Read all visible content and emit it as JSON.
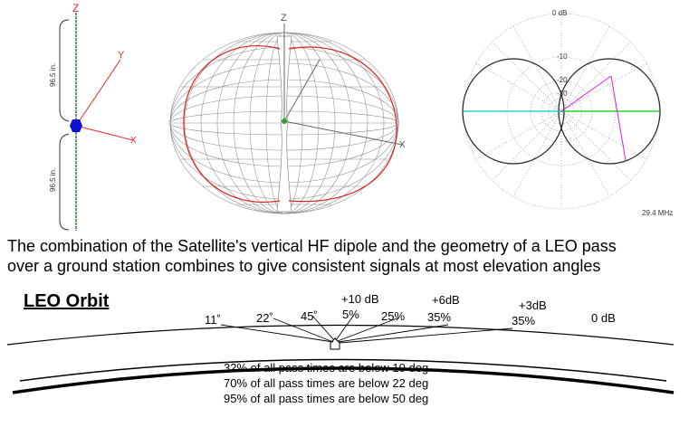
{
  "antenna": {
    "z_label": "Z",
    "y_label": "Y",
    "x_label": "X",
    "upper_length": "96.5 in.",
    "lower_length": "96.5 in."
  },
  "pattern3d": {
    "z_label": "Z",
    "x_label": "X"
  },
  "polar": {
    "ring_labels": [
      "0 dB",
      "-10",
      "-20",
      "-30"
    ],
    "frequency": "29.4 MHz"
  },
  "caption": {
    "line1": "The combination of the Satellite's vertical HF dipole and the geometry of a LEO pass",
    "line2": "over a ground station combines to give consistent signals at most elevation angles"
  },
  "orbit": {
    "title": "LEO Orbit",
    "angles": [
      "11˚",
      "22˚",
      "45˚"
    ],
    "zenith_gain": "+10 dB",
    "percents": [
      "5%",
      "25%",
      "35%",
      "35%"
    ],
    "gain_6": "+6dB",
    "gain_3": "+3dB",
    "gain_0": "0 dB",
    "stats": [
      "32% of all pass times are below 10 deg",
      "70% of all pass times are below 22 deg",
      "95% of all pass times are below 50 deg"
    ]
  },
  "colors": {
    "antenna_wire": "#2e7d32",
    "feed_point": "#1010d0",
    "axes": "#e03030",
    "pattern_cut": "#dd2222",
    "mesh": "#8a8a8a",
    "polar_h": "#00cc00",
    "polar_h2": "#00cccc",
    "polar_diag": "#dd22dd"
  }
}
